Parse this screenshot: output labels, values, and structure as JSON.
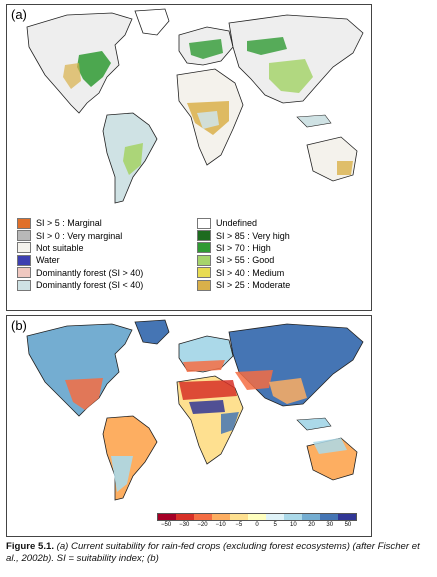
{
  "panel_a": {
    "label": "(a)",
    "legend": [
      {
        "text": "SI > 5 : Marginal",
        "color": "#e0702a"
      },
      {
        "text": "SI > 0 : Very marginal",
        "color": "#b8b8b8"
      },
      {
        "text": "Not suitable",
        "color": "#f4f2ec"
      },
      {
        "text": "Water",
        "color": "#3d3fb0"
      },
      {
        "text": "Dominantly forest (SI > 40)",
        "color": "#f0c8c0"
      },
      {
        "text": "Dominantly forest (SI < 40)",
        "color": "#cfe2e4"
      },
      {
        "text": "Undefined",
        "color": "#ffffff"
      },
      {
        "text": "SI > 85 : Very high",
        "color": "#1d6b1f"
      },
      {
        "text": "SI > 70 : High",
        "color": "#2f9a33"
      },
      {
        "text": "SI > 55 : Good",
        "color": "#a6d46c"
      },
      {
        "text": "SI > 40 : Medium",
        "color": "#e8dc52"
      },
      {
        "text": "SI > 25 : Moderate",
        "color": "#d9b04a"
      }
    ]
  },
  "panel_b": {
    "label": "(b)",
    "colorbar": {
      "ticks": [
        "−50",
        "−30",
        "−20",
        "−10",
        "−5",
        "0",
        "5",
        "10",
        "20",
        "30",
        "50"
      ],
      "colors": [
        "#a50026",
        "#d73027",
        "#f46d43",
        "#fdae61",
        "#fee090",
        "#ffffbf",
        "#e0f3f8",
        "#abd9e9",
        "#74add1",
        "#4575b4",
        "#313695"
      ]
    }
  },
  "caption": {
    "lead": "Figure 5.1.",
    "body": " (a) Current suitability for rain-fed crops (excluding forest ecosystems) (after Fischer et al., 2002b). SI = suitability index; (b)"
  }
}
